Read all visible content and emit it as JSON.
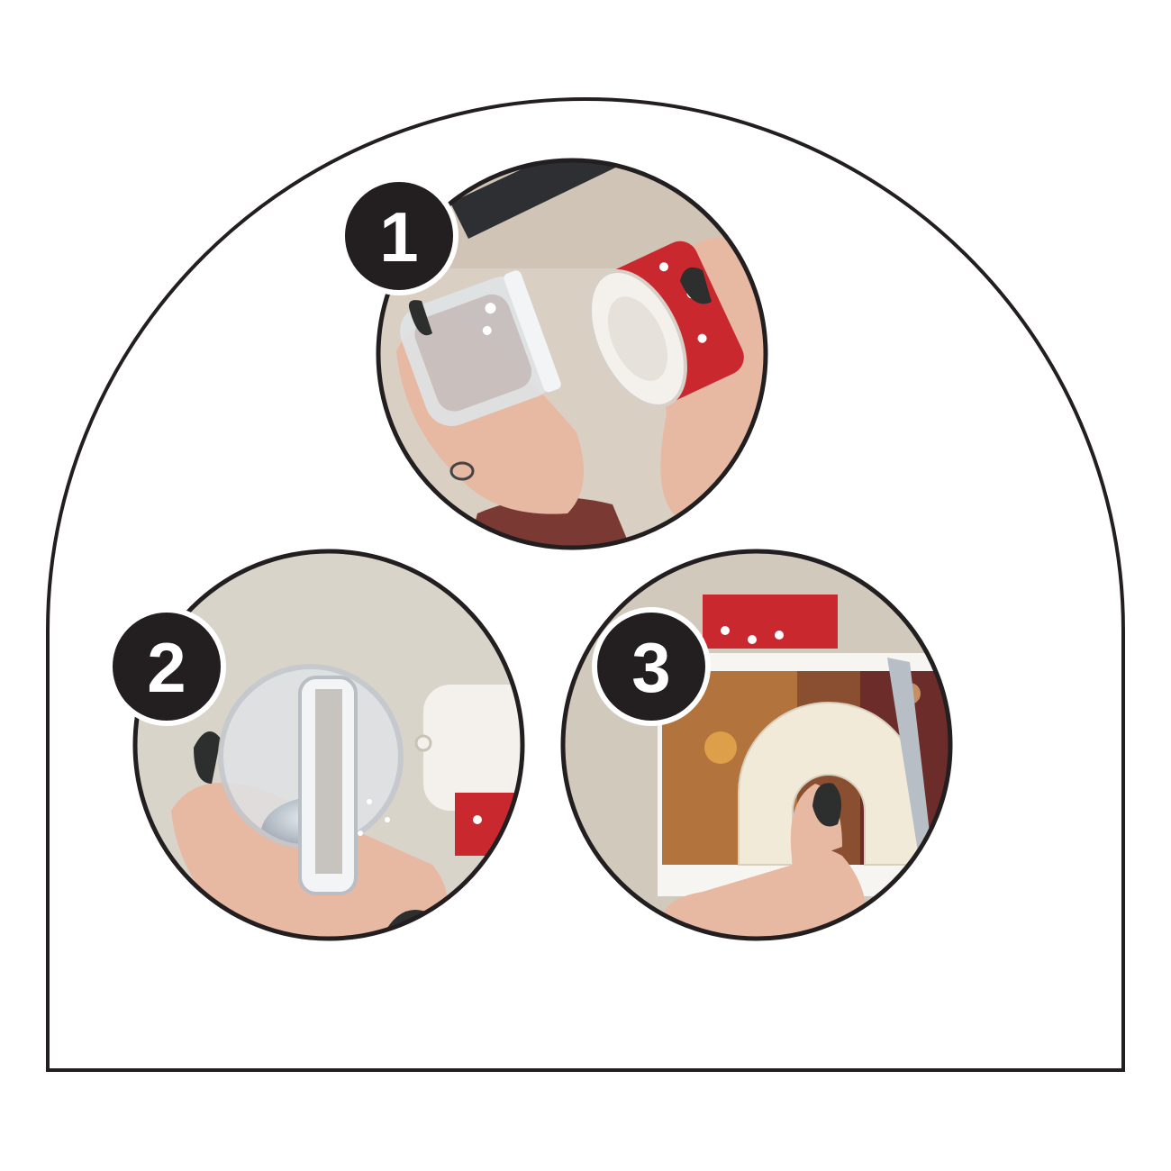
{
  "template": {
    "outline_color": "#231f20",
    "background_color": "#ffffff"
  },
  "steps": [
    {
      "number": "1",
      "photo": "hands-separating-snow-globe-dome-and-base-icon"
    },
    {
      "number": "2",
      "photo": "snow-globe-dome-with-glitter-and-photo-slot-icon"
    },
    {
      "number": "3",
      "photo": "cutting-arch-template-from-printed-photo-icon"
    }
  ],
  "colors": {
    "badge": "#231f20",
    "tabletop": "#d9cfc3",
    "skin": "#e7b8a2",
    "nail": "#2c2f2d",
    "base_red": "#c8282e",
    "base_white": "#f4f1ec",
    "acrylic": "#dfe3e7",
    "paper": "#f1ead9",
    "scissors_blue": "#2a62c9"
  }
}
